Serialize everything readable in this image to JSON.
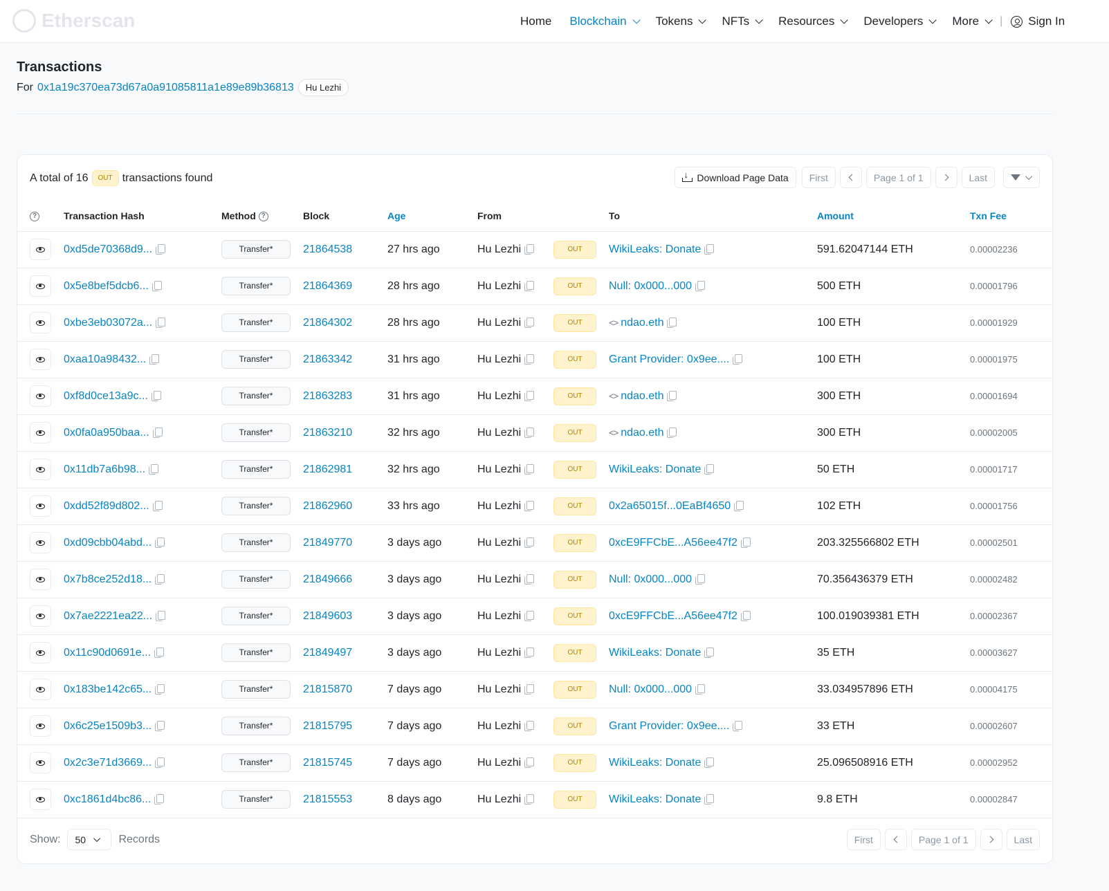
{
  "nav": {
    "logo_text": "Etherscan",
    "items": [
      {
        "label": "Home",
        "active": false,
        "dropdown": false,
        "name": "nav-home"
      },
      {
        "label": "Blockchain",
        "active": true,
        "dropdown": true,
        "name": "nav-blockchain"
      },
      {
        "label": "Tokens",
        "active": false,
        "dropdown": true,
        "name": "nav-tokens"
      },
      {
        "label": "NFTs",
        "active": false,
        "dropdown": true,
        "name": "nav-nfts"
      },
      {
        "label": "Resources",
        "active": false,
        "dropdown": true,
        "name": "nav-resources"
      },
      {
        "label": "Developers",
        "active": false,
        "dropdown": true,
        "name": "nav-developers"
      },
      {
        "label": "More",
        "active": false,
        "dropdown": true,
        "name": "nav-more"
      }
    ],
    "separator": "|",
    "sign_in": "Sign In"
  },
  "page": {
    "title": "Transactions",
    "for_label": "For",
    "address": "0x1a19c370ea73d67a0a91085811a1e89e89b36813",
    "name_tag": "Hu Lezhi"
  },
  "summary": {
    "prefix": "A total of 16",
    "badge": "OUT",
    "suffix": "transactions found"
  },
  "toolbar": {
    "download": "Download Page Data",
    "first": "First",
    "page": "Page 1 of 1",
    "last": "Last"
  },
  "columns": {
    "hash": "Transaction Hash",
    "method": "Method",
    "block": "Block",
    "age": "Age",
    "from": "From",
    "to": "To",
    "amount": "Amount",
    "fee": "Txn Fee"
  },
  "rows": [
    {
      "hash": "0xd5de70368d9...",
      "method": "Transfer*",
      "block": "21864538",
      "age": "27 hrs ago",
      "from": "Hu Lezhi",
      "dir": "OUT",
      "to": "WikiLeaks: Donate",
      "to_contract": false,
      "amount": "591.62047144 ETH",
      "fee": "0.00002236"
    },
    {
      "hash": "0x5e8bef5dcb6...",
      "method": "Transfer*",
      "block": "21864369",
      "age": "28 hrs ago",
      "from": "Hu Lezhi",
      "dir": "OUT",
      "to": "Null: 0x000...000",
      "to_contract": false,
      "amount": "500 ETH",
      "fee": "0.00001796"
    },
    {
      "hash": "0xbe3eb03072a...",
      "method": "Transfer*",
      "block": "21864302",
      "age": "28 hrs ago",
      "from": "Hu Lezhi",
      "dir": "OUT",
      "to": "ndao.eth",
      "to_contract": true,
      "amount": "100 ETH",
      "fee": "0.00001929"
    },
    {
      "hash": "0xaa10a98432...",
      "method": "Transfer*",
      "block": "21863342",
      "age": "31 hrs ago",
      "from": "Hu Lezhi",
      "dir": "OUT",
      "to": "Grant Provider: 0x9ee....",
      "to_contract": false,
      "amount": "100 ETH",
      "fee": "0.00001975"
    },
    {
      "hash": "0xf8d0ce13a9c...",
      "method": "Transfer*",
      "block": "21863283",
      "age": "31 hrs ago",
      "from": "Hu Lezhi",
      "dir": "OUT",
      "to": "ndao.eth",
      "to_contract": true,
      "amount": "300 ETH",
      "fee": "0.00001694"
    },
    {
      "hash": "0x0fa0a950baa...",
      "method": "Transfer*",
      "block": "21863210",
      "age": "32 hrs ago",
      "from": "Hu Lezhi",
      "dir": "OUT",
      "to": "ndao.eth",
      "to_contract": true,
      "amount": "300 ETH",
      "fee": "0.00002005"
    },
    {
      "hash": "0x11db7a6b98...",
      "method": "Transfer*",
      "block": "21862981",
      "age": "32 hrs ago",
      "from": "Hu Lezhi",
      "dir": "OUT",
      "to": "WikiLeaks: Donate",
      "to_contract": false,
      "amount": "50 ETH",
      "fee": "0.00001717"
    },
    {
      "hash": "0xdd52f89d802...",
      "method": "Transfer*",
      "block": "21862960",
      "age": "33 hrs ago",
      "from": "Hu Lezhi",
      "dir": "OUT",
      "to": "0x2a65015f...0EaBf4650",
      "to_contract": false,
      "amount": "102 ETH",
      "fee": "0.00001756"
    },
    {
      "hash": "0xd09cbb04abd...",
      "method": "Transfer*",
      "block": "21849770",
      "age": "3 days ago",
      "from": "Hu Lezhi",
      "dir": "OUT",
      "to": "0xcE9FFCbE...A56ee47f2",
      "to_contract": false,
      "amount": "203.325566802 ETH",
      "fee": "0.00002501"
    },
    {
      "hash": "0x7b8ce252d18...",
      "method": "Transfer*",
      "block": "21849666",
      "age": "3 days ago",
      "from": "Hu Lezhi",
      "dir": "OUT",
      "to": "Null: 0x000...000",
      "to_contract": false,
      "amount": "70.356436379 ETH",
      "fee": "0.00002482"
    },
    {
      "hash": "0x7ae2221ea22...",
      "method": "Transfer*",
      "block": "21849603",
      "age": "3 days ago",
      "from": "Hu Lezhi",
      "dir": "OUT",
      "to": "0xcE9FFCbE...A56ee47f2",
      "to_contract": false,
      "amount": "100.019039381 ETH",
      "fee": "0.00002367"
    },
    {
      "hash": "0x11c90d0691e...",
      "method": "Transfer*",
      "block": "21849497",
      "age": "3 days ago",
      "from": "Hu Lezhi",
      "dir": "OUT",
      "to": "WikiLeaks: Donate",
      "to_contract": false,
      "amount": "35 ETH",
      "fee": "0.00003627"
    },
    {
      "hash": "0x183be142c65...",
      "method": "Transfer*",
      "block": "21815870",
      "age": "7 days ago",
      "from": "Hu Lezhi",
      "dir": "OUT",
      "to": "Null: 0x000...000",
      "to_contract": false,
      "amount": "33.034957896 ETH",
      "fee": "0.00004175"
    },
    {
      "hash": "0x6c25e1509b3...",
      "method": "Transfer*",
      "block": "21815795",
      "age": "7 days ago",
      "from": "Hu Lezhi",
      "dir": "OUT",
      "to": "Grant Provider: 0x9ee....",
      "to_contract": false,
      "amount": "33 ETH",
      "fee": "0.00002607"
    },
    {
      "hash": "0x2c3e71d3669...",
      "method": "Transfer*",
      "block": "21815745",
      "age": "7 days ago",
      "from": "Hu Lezhi",
      "dir": "OUT",
      "to": "WikiLeaks: Donate",
      "to_contract": false,
      "amount": "25.096508916 ETH",
      "fee": "0.00002952"
    },
    {
      "hash": "0xc1861d4bc86...",
      "method": "Transfer*",
      "block": "21815553",
      "age": "8 days ago",
      "from": "Hu Lezhi",
      "dir": "OUT",
      "to": "WikiLeaks: Donate",
      "to_contract": false,
      "amount": "9.8 ETH",
      "fee": "0.00002847"
    }
  ],
  "footer": {
    "show_label": "Show:",
    "show_value": "50",
    "records_label": "Records",
    "first": "First",
    "page": "Page 1 of 1",
    "last": "Last"
  }
}
